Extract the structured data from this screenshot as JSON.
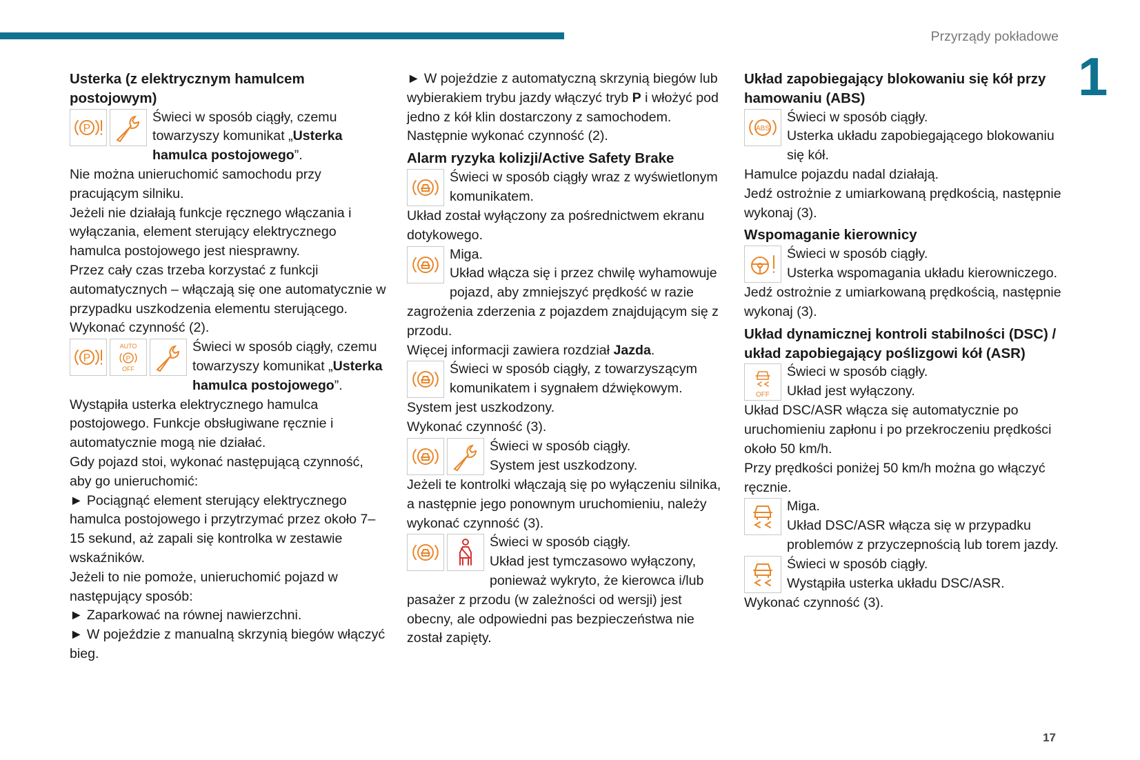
{
  "header": {
    "section_title": "Przyrządy pokładowe",
    "chapter_number": "1",
    "page_number": "17"
  },
  "colors": {
    "accent": "#0f7291",
    "icon_orange": "#e8862a",
    "icon_red": "#d0312d"
  },
  "columns": [
    [
      {
        "type": "h",
        "runs": [
          {
            "t": "Usterka (z elektrycznym hamulcem postojowym)"
          }
        ]
      },
      {
        "type": "e",
        "icons": [
          "parking-brake-warning-icon",
          "wrench-icon"
        ],
        "runs": [
          {
            "t": "Świeci w sposób ciągły, czemu towarzyszy komunikat „"
          },
          {
            "t": "Usterka hamulca postojowego",
            "b": true
          },
          {
            "t": "”."
          }
        ]
      },
      {
        "type": "p",
        "runs": [
          {
            "t": "Nie można unieruchomić samochodu przy pracującym silniku."
          }
        ]
      },
      {
        "type": "p",
        "runs": [
          {
            "t": "Jeżeli nie działają funkcje ręcznego włączania i wyłączania, element sterujący elektrycznego hamulca postojowego jest niesprawny."
          }
        ]
      },
      {
        "type": "p",
        "runs": [
          {
            "t": "Przez cały czas trzeba korzystać z funkcji automatycznych – włączają się one automatycznie w przypadku uszkodzenia elementu sterującego."
          }
        ]
      },
      {
        "type": "p",
        "runs": [
          {
            "t": "Wykonać czynność (2)."
          }
        ]
      },
      {
        "type": "e",
        "icons": [
          "parking-brake-warning-icon",
          "auto-parking-off-icon",
          "wrench-icon"
        ],
        "runs": [
          {
            "t": "Świeci w sposób ciągły, czemu towarzyszy komunikat „"
          },
          {
            "t": "Usterka hamulca postojowego",
            "b": true
          },
          {
            "t": "”."
          }
        ]
      },
      {
        "type": "p",
        "runs": [
          {
            "t": "Wystąpiła usterka elektrycznego hamulca postojowego. Funkcje obsługiwane ręcznie i automatycznie mogą nie działać."
          }
        ]
      },
      {
        "type": "p",
        "runs": [
          {
            "t": "Gdy pojazd stoi, wykonać następującą czynność, aby go unieruchomić:"
          }
        ]
      },
      {
        "type": "p",
        "runs": [
          {
            "t": "► Pociągnąć element sterujący elektrycznego hamulca postojowego i przytrzymać przez około 7–15 sekund, aż zapali się kontrolka w zestawie wskaźników."
          }
        ]
      },
      {
        "type": "p",
        "runs": [
          {
            "t": "Jeżeli to nie pomoże, unieruchomić pojazd w następujący sposób:"
          }
        ]
      },
      {
        "type": "p",
        "runs": [
          {
            "t": "► Zaparkować na równej nawierzchni."
          }
        ]
      },
      {
        "type": "p",
        "runs": [
          {
            "t": "► W pojeździe z manualną skrzynią biegów włączyć bieg."
          }
        ]
      }
    ],
    [
      {
        "type": "p",
        "runs": [
          {
            "t": "► W pojeździe z automatyczną skrzynią biegów lub wybierakiem trybu jazdy włączyć tryb "
          },
          {
            "t": "P",
            "b": true
          },
          {
            "t": " i włożyć pod jedno z kół klin dostarczony z samochodem."
          }
        ]
      },
      {
        "type": "p",
        "runs": [
          {
            "t": "Następnie wykonać czynność (2)."
          }
        ]
      },
      {
        "type": "h",
        "runs": [
          {
            "t": "Alarm ryzyka kolizji/Active Safety Brake"
          }
        ]
      },
      {
        "type": "e",
        "icons": [
          "collision-alert-icon"
        ],
        "runs": [
          {
            "t": "Świeci w sposób ciągły wraz z wyświetlonym komunikatem."
          }
        ]
      },
      {
        "type": "p",
        "runs": [
          {
            "t": "Układ został wyłączony za pośrednictwem ekranu dotykowego."
          }
        ]
      },
      {
        "type": "e",
        "icons": [
          "collision-alert-icon"
        ],
        "runs": [
          {
            "t": "Miga."
          },
          {
            "br": true
          },
          {
            "t": "Układ włącza się i przez chwilę wyhamowuje pojazd, aby zmniejszyć prędkość w razie zagrożenia zderzenia z pojazdem znajdującym się z przodu."
          }
        ]
      },
      {
        "type": "p",
        "runs": [
          {
            "t": "Więcej informacji zawiera rozdział "
          },
          {
            "t": "Jazda",
            "b": true
          },
          {
            "t": "."
          }
        ]
      },
      {
        "type": "e",
        "icons": [
          "collision-alert-icon"
        ],
        "runs": [
          {
            "t": "Świeci w sposób ciągły, z towarzyszącym komunikatem i sygnałem dźwiękowym."
          }
        ]
      },
      {
        "type": "p",
        "runs": [
          {
            "t": "System jest uszkodzony."
          }
        ]
      },
      {
        "type": "p",
        "runs": [
          {
            "t": "Wykonać czynność (3)."
          }
        ]
      },
      {
        "type": "e",
        "icons": [
          "collision-alert-icon",
          "wrench-icon"
        ],
        "runs": [
          {
            "t": "Świeci w sposób ciągły."
          },
          {
            "br": true
          },
          {
            "t": "System jest uszkodzony."
          }
        ]
      },
      {
        "type": "p",
        "runs": [
          {
            "t": "Jeżeli te kontrolki włączają się po wyłączeniu silnika, a następnie jego ponownym uruchomieniu, należy wykonać czynność (3)."
          }
        ]
      },
      {
        "type": "e",
        "icons": [
          "collision-alert-icon",
          "seatbelt-icon"
        ],
        "runs": [
          {
            "t": "Świeci w sposób ciągły."
          },
          {
            "br": true
          },
          {
            "t": "Układ jest tymczasowo wyłączony, ponieważ wykryto, że kierowca i/lub pasażer z przodu (w zależności od wersji) jest obecny, ale odpowiedni pas bezpieczeństwa nie został zapięty."
          }
        ]
      }
    ],
    [
      {
        "type": "h",
        "runs": [
          {
            "t": "Układ zapobiegający blokowaniu się kół przy hamowaniu (ABS)"
          }
        ]
      },
      {
        "type": "e",
        "icons": [
          "abs-icon"
        ],
        "runs": [
          {
            "t": "Świeci w sposób ciągły."
          },
          {
            "br": true
          },
          {
            "t": "Usterka układu zapobiegającego blokowaniu się kół."
          }
        ]
      },
      {
        "type": "p",
        "runs": [
          {
            "t": "Hamulce pojazdu nadal działają."
          }
        ]
      },
      {
        "type": "p",
        "runs": [
          {
            "t": "Jedź ostrożnie z umiarkowaną prędkością, następnie wykonaj (3)."
          }
        ]
      },
      {
        "type": "h",
        "runs": [
          {
            "t": "Wspomaganie kierownicy"
          }
        ]
      },
      {
        "type": "e",
        "icons": [
          "power-steering-icon"
        ],
        "runs": [
          {
            "t": "Świeci w sposób ciągły."
          },
          {
            "br": true
          },
          {
            "t": "Usterka wspomagania układu kierowniczego."
          }
        ]
      },
      {
        "type": "p",
        "runs": [
          {
            "t": "Jedź ostrożnie z umiarkowaną prędkością, następnie wykonaj (3)."
          }
        ]
      },
      {
        "type": "h",
        "runs": [
          {
            "t": "Układ dynamicznej kontroli stabilności (DSC) / układ zapobiegający poślizgowi kół (ASR)"
          }
        ]
      },
      {
        "type": "e",
        "icons": [
          "dsc-off-icon"
        ],
        "runs": [
          {
            "t": "Świeci w sposób ciągły."
          },
          {
            "br": true
          },
          {
            "t": "Układ jest wyłączony."
          }
        ]
      },
      {
        "type": "p",
        "runs": [
          {
            "t": "Układ DSC/ASR włącza się automatycznie po uruchomieniu zapłonu i po przekroczeniu prędkości około 50 km/h."
          }
        ]
      },
      {
        "type": "p",
        "runs": [
          {
            "t": "Przy prędkości poniżej 50 km/h można go włączyć ręcznie."
          }
        ]
      },
      {
        "type": "e",
        "icons": [
          "dsc-icon"
        ],
        "runs": [
          {
            "t": "Miga."
          },
          {
            "br": true
          },
          {
            "t": "Układ DSC/ASR włącza się w przypadku problemów z przyczepnością lub torem jazdy."
          }
        ]
      },
      {
        "type": "e",
        "icons": [
          "dsc-icon"
        ],
        "runs": [
          {
            "t": "Świeci w sposób ciągły."
          },
          {
            "br": true
          },
          {
            "t": "Wystąpiła usterka układu DSC/ASR."
          }
        ]
      },
      {
        "type": "p",
        "runs": [
          {
            "t": "Wykonać czynność (3)."
          }
        ]
      }
    ]
  ],
  "icon_labels": {
    "auto": "AUTO",
    "off": "OFF",
    "p": "P",
    "abs": "ABS"
  }
}
